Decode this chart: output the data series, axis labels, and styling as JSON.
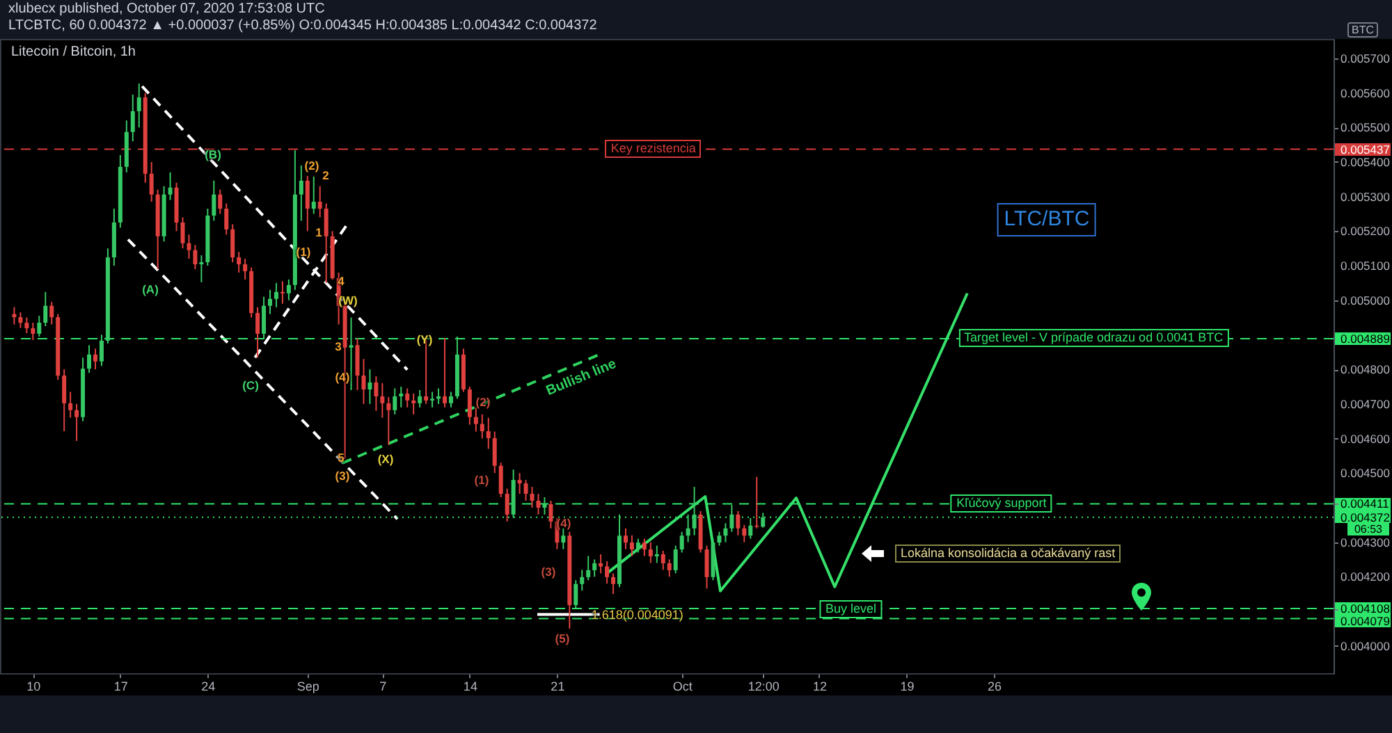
{
  "chart_data": {
    "type": "candlestick",
    "title": "xlubecx published, October 07, 2020 17:53:08 UTC",
    "subtitle": "LTCBTC, 60 0.004372 ▲ +0.000037 (+0.85%) O:0.004345 H:0.004385 L:0.004342 C:0.004372",
    "ylabel": "BTC",
    "xlim": [
      "2020-08-07T22:00",
      "2020-11-21T16:00"
    ],
    "ylim": [
      0.003921,
      0.005756
    ],
    "xticks": [
      {
        "value": "2020-08-10",
        "label": "10"
      },
      {
        "value": "2020-08-17",
        "label": "17"
      },
      {
        "value": "2020-08-24",
        "label": "24"
      },
      {
        "value": "2020-09-01",
        "label": "Sep"
      },
      {
        "value": "2020-09-07",
        "label": "7"
      },
      {
        "value": "2020-09-14",
        "label": "14"
      },
      {
        "value": "2020-09-21",
        "label": "21"
      },
      {
        "value": "2020-10-01",
        "label": "Oct"
      },
      {
        "value": "2020-10-07T12:00",
        "label": "12:00"
      },
      {
        "value": "2020-10-12",
        "label": "12"
      },
      {
        "value": "2020-10-19",
        "label": "19"
      },
      {
        "value": "2020-10-26",
        "label": "26"
      }
    ],
    "yticks": [
      {
        "value": 0.004,
        "label": "0.004000"
      },
      {
        "value": 0.004079,
        "label": "0.004079"
      },
      {
        "value": 0.004108,
        "label": "0.004108"
      },
      {
        "value": 0.0042,
        "label": "0.004200"
      },
      {
        "value": 0.0043,
        "label": "0.004300"
      },
      {
        "value": 0.004372,
        "label": "0.004372"
      },
      {
        "value": 0.004411,
        "label": "0.004411"
      },
      {
        "value": 0.0045,
        "label": "0.004500"
      },
      {
        "value": 0.0046,
        "label": "0.004600"
      },
      {
        "value": 0.0047,
        "label": "0.004700"
      },
      {
        "value": 0.0048,
        "label": "0.004800"
      },
      {
        "value": 0.004889,
        "label": "0.004889"
      },
      {
        "value": 0.005,
        "label": "0.005000"
      },
      {
        "value": 0.0051,
        "label": "0.005100"
      },
      {
        "value": 0.0052,
        "label": "0.005200"
      },
      {
        "value": 0.0053,
        "label": "0.005300"
      },
      {
        "value": 0.0054,
        "label": "0.005400"
      },
      {
        "value": 0.005437,
        "label": "0.005437"
      },
      {
        "value": 0.0055,
        "label": "0.005500"
      },
      {
        "value": 0.0056,
        "label": "0.005600"
      },
      {
        "value": 0.0057,
        "label": "0.005700"
      }
    ],
    "x": [
      "2020-08-08T12:00",
      "2020-08-09T00:00",
      "2020-08-09T12:00",
      "2020-08-10T00:00",
      "2020-08-10T12:00",
      "2020-08-11T00:00",
      "2020-08-11T12:00",
      "2020-08-12T00:00",
      "2020-08-12T12:00",
      "2020-08-13T00:00",
      "2020-08-13T12:00",
      "2020-08-14T00:00",
      "2020-08-14T12:00",
      "2020-08-15T00:00",
      "2020-08-15T12:00",
      "2020-08-16T00:00",
      "2020-08-16T12:00",
      "2020-08-17T00:00",
      "2020-08-17T12:00",
      "2020-08-18T00:00",
      "2020-08-18T12:00",
      "2020-08-19T00:00",
      "2020-08-19T12:00",
      "2020-08-20T00:00",
      "2020-08-20T12:00",
      "2020-08-21T00:00",
      "2020-08-21T12:00",
      "2020-08-22T00:00",
      "2020-08-22T12:00",
      "2020-08-23T00:00",
      "2020-08-23T12:00",
      "2020-08-24T00:00",
      "2020-08-24T12:00",
      "2020-08-25T00:00",
      "2020-08-25T12:00",
      "2020-08-26T00:00",
      "2020-08-26T12:00",
      "2020-08-27T00:00",
      "2020-08-27T12:00",
      "2020-08-28T00:00",
      "2020-08-28T12:00",
      "2020-08-29T00:00",
      "2020-08-29T12:00",
      "2020-08-30T00:00",
      "2020-08-30T12:00",
      "2020-08-31T00:00",
      "2020-08-31T12:00",
      "2020-09-01T00:00",
      "2020-09-01T12:00",
      "2020-09-02T00:00",
      "2020-09-02T12:00",
      "2020-09-03T00:00",
      "2020-09-03T12:00",
      "2020-09-04T00:00",
      "2020-09-04T12:00",
      "2020-09-05T00:00",
      "2020-09-05T12:00",
      "2020-09-06T00:00",
      "2020-09-06T12:00",
      "2020-09-07T00:00",
      "2020-09-07T12:00",
      "2020-09-08T00:00",
      "2020-09-08T12:00",
      "2020-09-09T00:00",
      "2020-09-09T12:00",
      "2020-09-10T00:00",
      "2020-09-10T12:00",
      "2020-09-11T00:00",
      "2020-09-11T12:00",
      "2020-09-12T00:00",
      "2020-09-12T12:00",
      "2020-09-13T00:00",
      "2020-09-13T12:00",
      "2020-09-14T00:00",
      "2020-09-14T12:00",
      "2020-09-15T00:00",
      "2020-09-15T12:00",
      "2020-09-16T00:00",
      "2020-09-16T12:00",
      "2020-09-17T00:00",
      "2020-09-17T12:00",
      "2020-09-18T00:00",
      "2020-09-18T12:00",
      "2020-09-19T00:00",
      "2020-09-19T12:00",
      "2020-09-20T00:00",
      "2020-09-20T12:00",
      "2020-09-21T00:00",
      "2020-09-21T12:00",
      "2020-09-22T00:00",
      "2020-09-22T12:00",
      "2020-09-23T00:00",
      "2020-09-23T12:00",
      "2020-09-24T00:00",
      "2020-09-24T12:00",
      "2020-09-25T00:00",
      "2020-09-25T12:00",
      "2020-09-26T00:00",
      "2020-09-26T12:00",
      "2020-09-27T00:00",
      "2020-09-27T12:00",
      "2020-09-28T00:00",
      "2020-09-28T12:00",
      "2020-09-29T00:00",
      "2020-09-29T12:00",
      "2020-09-30T00:00",
      "2020-09-30T12:00",
      "2020-10-01T00:00",
      "2020-10-01T12:00",
      "2020-10-02T00:00",
      "2020-10-02T12:00",
      "2020-10-03T00:00",
      "2020-10-03T12:00",
      "2020-10-04T00:00",
      "2020-10-04T12:00",
      "2020-10-05T00:00",
      "2020-10-05T12:00",
      "2020-10-06T00:00",
      "2020-10-06T12:00",
      "2020-10-07T00:00",
      "2020-10-07T12:00"
    ],
    "ohlc": [
      [
        0.00496,
        0.00498,
        0.00493,
        0.004951
      ],
      [
        0.004951,
        0.004965,
        0.00492,
        0.004935
      ],
      [
        0.004935,
        0.00495,
        0.004905,
        0.004919
      ],
      [
        0.004919,
        0.004935,
        0.004885,
        0.004903
      ],
      [
        0.004903,
        0.004955,
        0.004895,
        0.004935
      ],
      [
        0.004935,
        0.005024,
        0.004925,
        0.004984
      ],
      [
        0.004984,
        0.004995,
        0.00493,
        0.004951
      ],
      [
        0.004951,
        0.00496,
        0.00477,
        0.004782
      ],
      [
        0.004782,
        0.0048,
        0.004621,
        0.004702
      ],
      [
        0.004702,
        0.004735,
        0.00466,
        0.004682
      ],
      [
        0.004682,
        0.0047,
        0.004593,
        0.004662
      ],
      [
        0.004662,
        0.004834,
        0.00465,
        0.004802
      ],
      [
        0.004802,
        0.00487,
        0.00479,
        0.004843
      ],
      [
        0.004843,
        0.00486,
        0.0048,
        0.004823
      ],
      [
        0.004823,
        0.0049,
        0.00481,
        0.004883
      ],
      [
        0.004883,
        0.00515,
        0.004875,
        0.005124
      ],
      [
        0.005124,
        0.005265,
        0.0051,
        0.005225
      ],
      [
        0.005225,
        0.00542,
        0.00521,
        0.005386
      ],
      [
        0.005386,
        0.00552,
        0.00537,
        0.005487
      ],
      [
        0.005487,
        0.005595,
        0.00546,
        0.005547
      ],
      [
        0.005547,
        0.005627,
        0.0055,
        0.005587
      ],
      [
        0.005587,
        0.0056,
        0.00534,
        0.005366
      ],
      [
        0.005366,
        0.0054,
        0.005285,
        0.005306
      ],
      [
        0.005306,
        0.00532,
        0.00509,
        0.005185
      ],
      [
        0.005185,
        0.00533,
        0.00517,
        0.005306
      ],
      [
        0.005306,
        0.00537,
        0.00529,
        0.005326
      ],
      [
        0.005326,
        0.00534,
        0.0052,
        0.005225
      ],
      [
        0.005225,
        0.00524,
        0.00515,
        0.005165
      ],
      [
        0.005165,
        0.00519,
        0.00512,
        0.005145
      ],
      [
        0.005145,
        0.00516,
        0.00509,
        0.005104
      ],
      [
        0.005104,
        0.00513,
        0.005052,
        0.00511
      ],
      [
        0.00511,
        0.005265,
        0.0051,
        0.005245
      ],
      [
        0.005245,
        0.005346,
        0.00523,
        0.005306
      ],
      [
        0.005306,
        0.00532,
        0.00525,
        0.005265
      ],
      [
        0.005265,
        0.00528,
        0.00519,
        0.005205
      ],
      [
        0.005205,
        0.00522,
        0.00511,
        0.005124
      ],
      [
        0.005124,
        0.00514,
        0.00508,
        0.005104
      ],
      [
        0.005104,
        0.00512,
        0.00506,
        0.005084
      ],
      [
        0.005084,
        0.005095,
        0.00495,
        0.004963
      ],
      [
        0.004963,
        0.00498,
        0.004834,
        0.004903
      ],
      [
        0.004903,
        0.00501,
        0.00489,
        0.004984
      ],
      [
        0.004984,
        0.00503,
        0.00496,
        0.005004
      ],
      [
        0.005004,
        0.00505,
        0.00498,
        0.005024
      ],
      [
        0.005024,
        0.005055,
        0.00499,
        0.00502
      ],
      [
        0.00502,
        0.00506,
        0.005,
        0.005044
      ],
      [
        0.005044,
        0.005434,
        0.00503,
        0.005306
      ],
      [
        0.005306,
        0.00539,
        0.00523,
        0.005346
      ],
      [
        0.005346,
        0.00536,
        0.0052,
        0.005265
      ],
      [
        0.005265,
        0.005358,
        0.00525,
        0.005285
      ],
      [
        0.005285,
        0.00533,
        0.00524,
        0.005265
      ],
      [
        0.005265,
        0.00528,
        0.00505,
        0.005185
      ],
      [
        0.005185,
        0.0052,
        0.00506,
        0.005064
      ],
      [
        0.005064,
        0.00508,
        0.00493,
        0.004984
      ],
      [
        0.004984,
        0.004995,
        0.004541,
        0.004863
      ],
      [
        0.004863,
        0.00495,
        0.00474,
        0.00487
      ],
      [
        0.00487,
        0.00489,
        0.00474,
        0.004782
      ],
      [
        0.004782,
        0.00483,
        0.0047,
        0.004742
      ],
      [
        0.004742,
        0.0048,
        0.0047,
        0.004762
      ],
      [
        0.004762,
        0.00478,
        0.00468,
        0.004722
      ],
      [
        0.004722,
        0.00476,
        0.00466,
        0.004702
      ],
      [
        0.004702,
        0.00472,
        0.004581,
        0.004682
      ],
      [
        0.004682,
        0.004745,
        0.00467,
        0.004722
      ],
      [
        0.004722,
        0.00475,
        0.00469,
        0.00473
      ],
      [
        0.00473,
        0.004745,
        0.00469,
        0.00471
      ],
      [
        0.00471,
        0.00473,
        0.00467,
        0.004702
      ],
      [
        0.004702,
        0.00474,
        0.00469,
        0.004722
      ],
      [
        0.004722,
        0.004891,
        0.0047,
        0.00471
      ],
      [
        0.00471,
        0.004735,
        0.00469,
        0.004715
      ],
      [
        0.004715,
        0.004745,
        0.0047,
        0.004722
      ],
      [
        0.004722,
        0.004891,
        0.00469,
        0.004702
      ],
      [
        0.004702,
        0.004735,
        0.00469,
        0.004722
      ],
      [
        0.004722,
        0.004895,
        0.004715,
        0.004843
      ],
      [
        0.004843,
        0.00486,
        0.004735,
        0.004742
      ],
      [
        0.004742,
        0.00475,
        0.00464,
        0.004662
      ],
      [
        0.004662,
        0.00469,
        0.00462,
        0.004642
      ],
      [
        0.004642,
        0.00467,
        0.0046,
        0.004621
      ],
      [
        0.004621,
        0.00466,
        0.00457,
        0.004601
      ],
      [
        0.004601,
        0.00462,
        0.0045,
        0.004521
      ],
      [
        0.004521,
        0.00453,
        0.00443,
        0.00444
      ],
      [
        0.00444,
        0.004455,
        0.00436,
        0.00438
      ],
      [
        0.00438,
        0.00451,
        0.00437,
        0.00448
      ],
      [
        0.00448,
        0.0045,
        0.00444,
        0.00447
      ],
      [
        0.00447,
        0.00448,
        0.00442,
        0.00444
      ],
      [
        0.00444,
        0.00446,
        0.0044,
        0.00442
      ],
      [
        0.00442,
        0.00444,
        0.00438,
        0.0044
      ],
      [
        0.0044,
        0.00443,
        0.00438,
        0.00441
      ],
      [
        0.00441,
        0.00442,
        0.00434,
        0.00436
      ],
      [
        0.00436,
        0.00437,
        0.00428,
        0.004299
      ],
      [
        0.004299,
        0.00434,
        0.00428,
        0.004319
      ],
      [
        0.004319,
        0.00433,
        0.00405,
        0.004118
      ],
      [
        0.004118,
        0.00419,
        0.00411,
        0.004179
      ],
      [
        0.004179,
        0.00422,
        0.00416,
        0.004199
      ],
      [
        0.004199,
        0.00426,
        0.00419,
        0.004219
      ],
      [
        0.004219,
        0.00425,
        0.0042,
        0.004239
      ],
      [
        0.004239,
        0.004265,
        0.00421,
        0.00423
      ],
      [
        0.00423,
        0.004245,
        0.00418,
        0.004199
      ],
      [
        0.004199,
        0.00421,
        0.00415,
        0.004179
      ],
      [
        0.004179,
        0.00438,
        0.00417,
        0.004319
      ],
      [
        0.004319,
        0.00434,
        0.00428,
        0.004299
      ],
      [
        0.004299,
        0.00432,
        0.00426,
        0.004279
      ],
      [
        0.004279,
        0.00431,
        0.00427,
        0.004299
      ],
      [
        0.004299,
        0.00431,
        0.00426,
        0.004279
      ],
      [
        0.004279,
        0.0043,
        0.00424,
        0.004259
      ],
      [
        0.004259,
        0.00429,
        0.00424,
        0.004265
      ],
      [
        0.004265,
        0.004275,
        0.00422,
        0.004239
      ],
      [
        0.004239,
        0.00425,
        0.0042,
        0.004219
      ],
      [
        0.004219,
        0.00429,
        0.00421,
        0.004279
      ],
      [
        0.004279,
        0.00433,
        0.00427,
        0.004319
      ],
      [
        0.004319,
        0.00438,
        0.0043,
        0.00434
      ],
      [
        0.00434,
        0.00446,
        0.00432,
        0.00438
      ],
      [
        0.00438,
        0.00439,
        0.00427,
        0.004279
      ],
      [
        0.004279,
        0.00429,
        0.004166,
        0.004199
      ],
      [
        0.004199,
        0.00431,
        0.00419,
        0.004299
      ],
      [
        0.004299,
        0.00433,
        0.00429,
        0.004319
      ],
      [
        0.004319,
        0.004355,
        0.0043,
        0.00434
      ],
      [
        0.00434,
        0.004408,
        0.00433,
        0.00438
      ],
      [
        0.00438,
        0.00439,
        0.00432,
        0.00434
      ],
      [
        0.00434,
        0.00435,
        0.0043,
        0.004319
      ],
      [
        0.004319,
        0.00437,
        0.00431,
        0.004348
      ],
      [
        0.004348,
        0.004489,
        0.00434,
        0.004345
      ],
      [
        0.004345,
        0.004385,
        0.004342,
        0.004372
      ]
    ],
    "colors": [
      "#e0413f",
      "#e0413f",
      "#e0413f",
      "#e0413f",
      "#36c864",
      "#36c864",
      "#e0413f",
      "#e0413f",
      "#e0413f",
      "#e0413f",
      "#e0413f",
      "#36c864",
      "#36c864",
      "#e0413f",
      "#36c864",
      "#36c864",
      "#36c864",
      "#36c864",
      "#36c864",
      "#36c864",
      "#36c864",
      "#e0413f",
      "#e0413f",
      "#e0413f",
      "#36c864",
      "#36c864",
      "#e0413f",
      "#e0413f",
      "#e0413f",
      "#e0413f",
      "#36c864",
      "#36c864",
      "#36c864",
      "#e0413f",
      "#e0413f",
      "#e0413f",
      "#e0413f",
      "#e0413f",
      "#e0413f",
      "#e0413f",
      "#36c864",
      "#36c864",
      "#36c864",
      "#e0413f",
      "#36c864",
      "#36c864",
      "#36c864",
      "#e0413f",
      "#36c864",
      "#e0413f",
      "#e0413f",
      "#e0413f",
      "#e0413f",
      "#e0413f",
      "#36c864",
      "#e0413f",
      "#e0413f",
      "#36c864",
      "#e0413f",
      "#e0413f",
      "#e0413f",
      "#36c864",
      "#36c864",
      "#e0413f",
      "#e0413f",
      "#36c864",
      "#e0413f",
      "#36c864",
      "#36c864",
      "#e0413f",
      "#36c864",
      "#36c864",
      "#e0413f",
      "#e0413f",
      "#e0413f",
      "#e0413f",
      "#e0413f",
      "#e0413f",
      "#e0413f",
      "#e0413f",
      "#36c864",
      "#e0413f",
      "#e0413f",
      "#e0413f",
      "#e0413f",
      "#36c864",
      "#e0413f",
      "#e0413f",
      "#36c864",
      "#e0413f",
      "#36c864",
      "#36c864",
      "#36c864",
      "#36c864",
      "#e0413f",
      "#e0413f",
      "#e0413f",
      "#36c864",
      "#e0413f",
      "#e0413f",
      "#36c864",
      "#e0413f",
      "#e0413f",
      "#36c864",
      "#e0413f",
      "#e0413f",
      "#36c864",
      "#36c864",
      "#36c864",
      "#36c864",
      "#e0413f",
      "#e0413f",
      "#36c864",
      "#36c864",
      "#36c864",
      "#36c864",
      "#e0413f",
      "#e0413f",
      "#36c864",
      "#e0413f",
      "#36c864"
    ],
    "series": [
      {
        "type": "line",
        "x": [
          "2020-08-18T18:00",
          "2020-09-09T00:00"
        ],
        "values": [
          0.005619,
          0.004799
        ],
        "color": "#ffffff",
        "line_style": "dashed"
      },
      {
        "type": "line",
        "x": [
          "2020-08-17T15:00",
          "2020-09-08T05:00"
        ],
        "values": [
          0.005176,
          0.004367
        ],
        "color": "#ffffff",
        "line_style": "dashed"
      },
      {
        "type": "line",
        "x": [
          "2020-08-27T19:00",
          "2020-09-04T05:00"
        ],
        "values": [
          0.004834,
          0.005221
        ],
        "color": "#ffffff",
        "line_style": "dashed"
      },
      {
        "name": "Bullish line",
        "type": "line",
        "x": [
          "2020-09-03T19:00",
          "2020-09-24T14:00"
        ],
        "values": [
          0.004529,
          0.004846
        ],
        "color": "#2fd25f",
        "line_style": "dashed"
      },
      {
        "type": "line",
        "x": [
          "2020-09-25T00:00",
          "2020-10-02T21:00",
          "2020-10-04T02:00",
          "2020-10-10T04:00",
          "2020-10-13T06:00",
          "2020-10-23T21:00"
        ],
        "values": [
          0.00421,
          0.004432,
          0.004159,
          0.004428,
          0.004171,
          0.00502
        ],
        "color": "#35e06a"
      },
      {
        "type": "line",
        "x": [
          "2020-09-19T10:00",
          "2020-09-24T10:00"
        ],
        "values": [
          0.004091,
          0.004091
        ],
        "color": "#ffffff"
      }
    ],
    "ref_lines": [
      {
        "axis": "y",
        "value": 0.005437,
        "label": "Key rezistencia",
        "color": "#d83a3a",
        "line_style": "dashed"
      },
      {
        "axis": "y",
        "value": 0.004889,
        "label": "Target level - V prípade odrazu od 0.0041 BTC",
        "color": "#2ee66b",
        "line_style": "dashed"
      },
      {
        "axis": "y",
        "value": 0.004411,
        "label": "Kľúčový support",
        "color": "#2ee66b",
        "line_style": "dashed"
      },
      {
        "axis": "y",
        "value": 0.004372,
        "color": "#2ee66b",
        "line_style": "dotted"
      },
      {
        "axis": "y",
        "value": 0.004108,
        "label": "Buy level",
        "color": "#2ee66b",
        "line_style": "dashed"
      },
      {
        "axis": "y",
        "value": 0.004079,
        "color": "#2ee66b",
        "line_style": "dashed"
      }
    ],
    "annotations": [
      "Litecoin / Bitcoin, 1h",
      "LTC/BTC",
      "(A)",
      "(B)",
      "(C)",
      "(2)",
      "2",
      "1",
      "(1)",
      "4",
      "(W)",
      "3",
      "(4)",
      "5",
      "(3)",
      "(X)",
      "(Y)",
      "(2)",
      "(1)",
      "(4)",
      "(3)",
      "(5)",
      {
        "text": "1.618(0.004091)",
        "x": "2020-09-27T11:00",
        "y": 0.004091
      },
      "Lokálna konsolidácia a očakávaný rast",
      "06:53"
    ]
  }
}
